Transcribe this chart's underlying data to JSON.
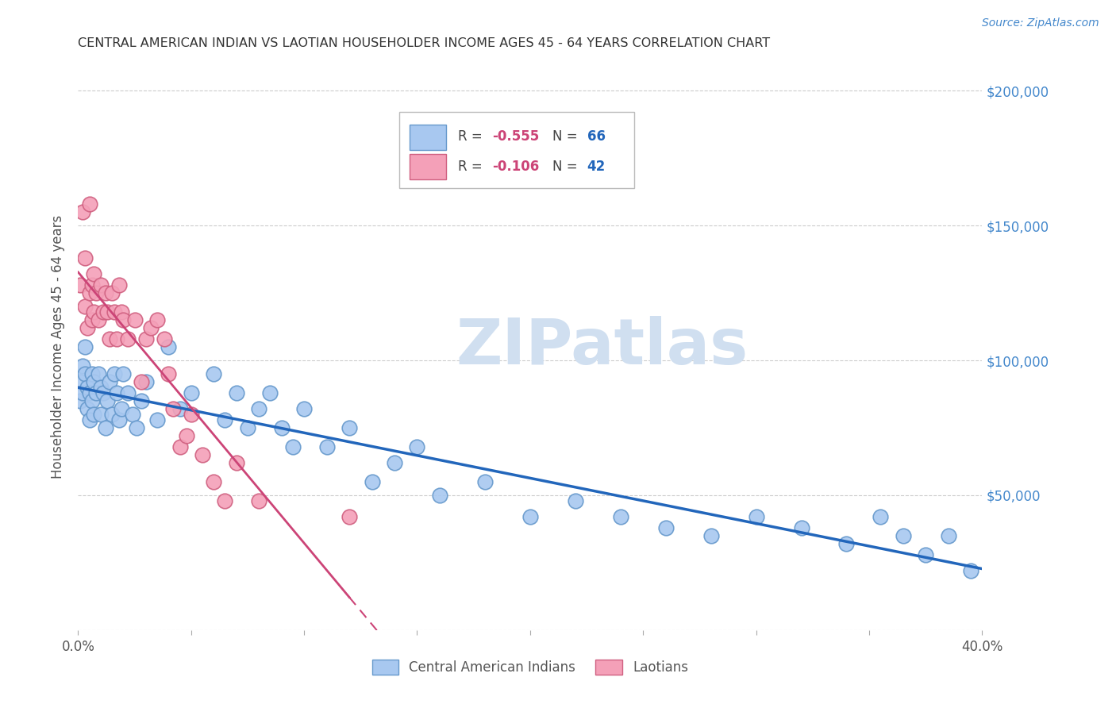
{
  "title": "CENTRAL AMERICAN INDIAN VS LAOTIAN HOUSEHOLDER INCOME AGES 45 - 64 YEARS CORRELATION CHART",
  "source": "Source: ZipAtlas.com",
  "ylabel": "Householder Income Ages 45 - 64 years",
  "x_min": 0.0,
  "x_max": 0.4,
  "y_min": 0,
  "y_max": 210000,
  "x_ticks": [
    0.0,
    0.05,
    0.1,
    0.15,
    0.2,
    0.25,
    0.3,
    0.35,
    0.4
  ],
  "x_tick_labels": [
    "0.0%",
    "",
    "",
    "",
    "",
    "",
    "",
    "",
    "40.0%"
  ],
  "y_ticks": [
    0,
    50000,
    100000,
    150000,
    200000
  ],
  "y_tick_labels": [
    "",
    "$50,000",
    "$100,000",
    "$150,000",
    "$200,000"
  ],
  "series1_color": "#A8C8F0",
  "series1_edge": "#6699CC",
  "series1_label": "Central American Indians",
  "series1_R": "-0.555",
  "series1_N": "66",
  "series1_line_color": "#2266BB",
  "series2_color": "#F4A0B8",
  "series2_edge": "#D06080",
  "series2_label": "Laotians",
  "series2_R": "-0.106",
  "series2_N": "42",
  "series2_line_color": "#CC4477",
  "background_color": "#FFFFFF",
  "grid_color": "#CCCCCC",
  "title_color": "#333333",
  "axis_label_color": "#555555",
  "right_axis_label_color": "#4488CC",
  "watermark_text": "ZIPatlas",
  "watermark_color": "#D0DFF0",
  "series1_x": [
    0.001,
    0.001,
    0.002,
    0.002,
    0.003,
    0.003,
    0.004,
    0.004,
    0.005,
    0.005,
    0.006,
    0.006,
    0.007,
    0.007,
    0.008,
    0.009,
    0.01,
    0.01,
    0.011,
    0.012,
    0.013,
    0.014,
    0.015,
    0.016,
    0.017,
    0.018,
    0.019,
    0.02,
    0.022,
    0.024,
    0.026,
    0.028,
    0.03,
    0.035,
    0.04,
    0.045,
    0.05,
    0.06,
    0.065,
    0.07,
    0.075,
    0.08,
    0.085,
    0.09,
    0.095,
    0.1,
    0.11,
    0.12,
    0.13,
    0.14,
    0.15,
    0.16,
    0.18,
    0.2,
    0.22,
    0.24,
    0.26,
    0.28,
    0.3,
    0.32,
    0.34,
    0.355,
    0.365,
    0.375,
    0.385,
    0.395
  ],
  "series1_y": [
    92000,
    85000,
    98000,
    88000,
    105000,
    95000,
    90000,
    82000,
    88000,
    78000,
    95000,
    85000,
    92000,
    80000,
    88000,
    95000,
    90000,
    80000,
    88000,
    75000,
    85000,
    92000,
    80000,
    95000,
    88000,
    78000,
    82000,
    95000,
    88000,
    80000,
    75000,
    85000,
    92000,
    78000,
    105000,
    82000,
    88000,
    95000,
    78000,
    88000,
    75000,
    82000,
    88000,
    75000,
    68000,
    82000,
    68000,
    75000,
    55000,
    62000,
    68000,
    50000,
    55000,
    42000,
    48000,
    42000,
    38000,
    35000,
    42000,
    38000,
    32000,
    42000,
    35000,
    28000,
    35000,
    22000
  ],
  "series2_x": [
    0.001,
    0.002,
    0.003,
    0.003,
    0.004,
    0.005,
    0.005,
    0.006,
    0.006,
    0.007,
    0.007,
    0.008,
    0.009,
    0.01,
    0.011,
    0.012,
    0.013,
    0.014,
    0.015,
    0.016,
    0.017,
    0.018,
    0.019,
    0.02,
    0.022,
    0.025,
    0.028,
    0.03,
    0.032,
    0.035,
    0.038,
    0.04,
    0.042,
    0.045,
    0.048,
    0.05,
    0.055,
    0.06,
    0.065,
    0.07,
    0.08,
    0.12
  ],
  "series2_y": [
    128000,
    155000,
    120000,
    138000,
    112000,
    158000,
    125000,
    128000,
    115000,
    132000,
    118000,
    125000,
    115000,
    128000,
    118000,
    125000,
    118000,
    108000,
    125000,
    118000,
    108000,
    128000,
    118000,
    115000,
    108000,
    115000,
    92000,
    108000,
    112000,
    115000,
    108000,
    95000,
    82000,
    68000,
    72000,
    80000,
    65000,
    55000,
    48000,
    62000,
    48000,
    42000
  ]
}
